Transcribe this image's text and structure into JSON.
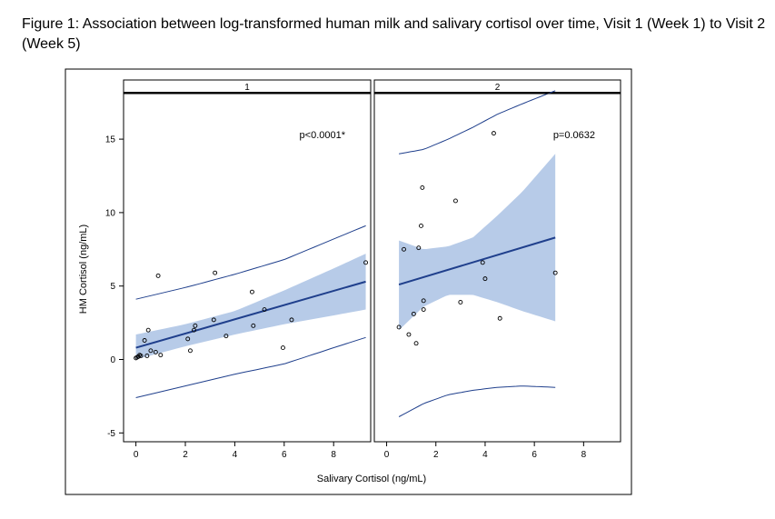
{
  "caption": "Figure 1: Association between log-transformed human milk and salivary cortisol over time, Visit 1 (Week 1) to Visit 2 (Week 5)",
  "colors": {
    "fit_line": "#1f3f8c",
    "band": "#b7cbe8",
    "points": "#000000",
    "frame": "#000000"
  },
  "chart_data": [
    {
      "type": "scatter",
      "panel_label": "1",
      "annotation": "p<0.0001*",
      "xlabel": "Salivary Cortisol (ng/mL)",
      "ylabel": "HM Cortisol (ng/mL)",
      "xlim": [
        -0.5,
        9.5
      ],
      "ylim": [
        -5.6,
        18.1
      ],
      "xticks": [
        0,
        2,
        4,
        6,
        8
      ],
      "yticks": [
        -5,
        0,
        5,
        10,
        15
      ],
      "grid": false,
      "points": [
        [
          0.0,
          0.1
        ],
        [
          0.05,
          0.15
        ],
        [
          0.1,
          0.2
        ],
        [
          0.15,
          0.3
        ],
        [
          0.2,
          0.25
        ],
        [
          0.35,
          1.3
        ],
        [
          0.45,
          0.25
        ],
        [
          0.5,
          2.0
        ],
        [
          0.6,
          0.6
        ],
        [
          0.8,
          0.5
        ],
        [
          0.9,
          5.7
        ],
        [
          1.0,
          0.3
        ],
        [
          2.1,
          1.4
        ],
        [
          2.2,
          0.6
        ],
        [
          2.35,
          2.0
        ],
        [
          2.4,
          2.3
        ],
        [
          3.15,
          2.7
        ],
        [
          3.2,
          5.9
        ],
        [
          3.65,
          1.6
        ],
        [
          4.7,
          4.6
        ],
        [
          4.75,
          2.3
        ],
        [
          5.2,
          3.4
        ],
        [
          6.3,
          2.7
        ],
        [
          5.95,
          0.8
        ],
        [
          9.3,
          6.6
        ]
      ],
      "fit": {
        "x": [
          0.0,
          9.3
        ],
        "y": [
          0.8,
          5.3
        ]
      },
      "confidence_band": {
        "x": [
          0.0,
          2.0,
          4.0,
          6.0,
          8.0,
          9.3
        ],
        "lower": [
          0.0,
          0.9,
          1.7,
          2.4,
          3.0,
          3.4
        ],
        "upper": [
          1.7,
          2.4,
          3.3,
          4.7,
          6.2,
          7.2
        ]
      },
      "prediction_band": {
        "x": [
          0.0,
          2.0,
          4.0,
          6.0,
          8.0,
          9.3
        ],
        "lower": [
          -2.6,
          -1.8,
          -1.0,
          -0.3,
          0.8,
          1.5
        ],
        "upper": [
          4.1,
          4.9,
          5.8,
          6.8,
          8.2,
          9.1
        ]
      }
    },
    {
      "type": "scatter",
      "panel_label": "2",
      "annotation": "p=0.0632",
      "xlabel": "Salivary Cortisol (ng/mL)",
      "ylabel": "HM Cortisol (ng/mL)",
      "xlim": [
        -0.5,
        9.5
      ],
      "ylim": [
        -5.6,
        18.1
      ],
      "xticks": [
        0,
        2,
        4,
        6,
        8
      ],
      "yticks": [
        -5,
        0,
        5,
        10,
        15
      ],
      "grid": false,
      "points": [
        [
          0.5,
          2.2
        ],
        [
          0.7,
          7.5
        ],
        [
          0.9,
          1.7
        ],
        [
          1.1,
          3.1
        ],
        [
          1.2,
          1.1
        ],
        [
          1.3,
          7.6
        ],
        [
          1.4,
          9.1
        ],
        [
          1.45,
          11.7
        ],
        [
          1.5,
          3.4
        ],
        [
          1.5,
          4.0
        ],
        [
          2.8,
          10.8
        ],
        [
          3.0,
          3.9
        ],
        [
          3.9,
          6.6
        ],
        [
          4.0,
          5.5
        ],
        [
          4.35,
          15.4
        ],
        [
          4.6,
          2.8
        ],
        [
          6.85,
          5.9
        ]
      ],
      "fit": {
        "x": [
          0.5,
          6.85
        ],
        "y": [
          5.1,
          8.3
        ]
      },
      "confidence_band": {
        "x": [
          0.5,
          1.5,
          2.5,
          3.5,
          4.5,
          5.5,
          6.85
        ],
        "lower": [
          2.0,
          3.6,
          4.4,
          4.4,
          3.9,
          3.3,
          2.6
        ],
        "upper": [
          8.1,
          7.5,
          7.7,
          8.3,
          9.8,
          11.4,
          14.0
        ]
      },
      "prediction_band": {
        "x": [
          0.5,
          1.5,
          2.5,
          3.5,
          4.5,
          5.5,
          6.85
        ],
        "lower": [
          -3.9,
          -3.0,
          -2.4,
          -2.1,
          -1.9,
          -1.8,
          -1.9
        ],
        "upper": [
          14.0,
          14.3,
          15.0,
          15.8,
          16.7,
          17.4,
          18.3
        ]
      }
    }
  ]
}
